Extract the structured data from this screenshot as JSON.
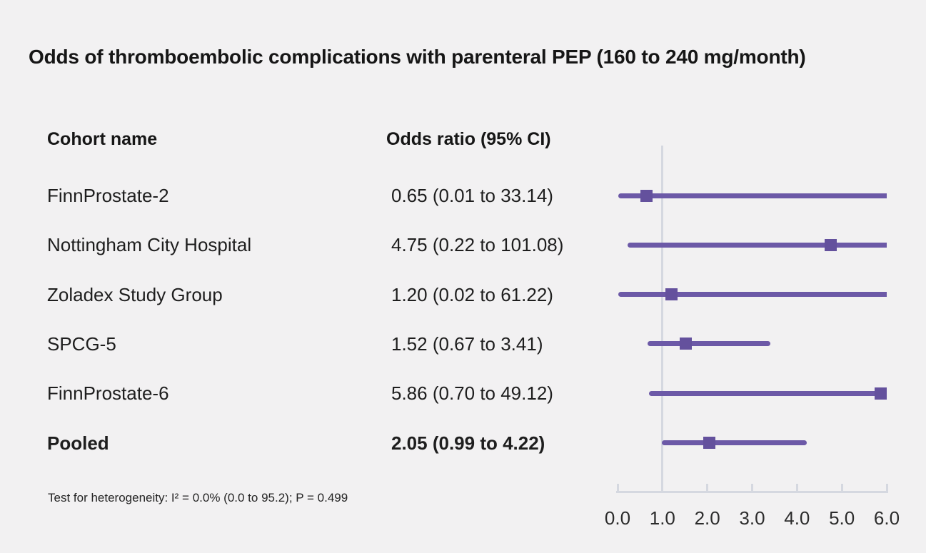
{
  "title": "Odds of thromboembolic complications with parenteral PEP (160 to 240 mg/month)",
  "table": {
    "col_cohort": "Cohort name",
    "col_odds_ratio": "Odds ratio (95% CI)"
  },
  "footnote": "Test for heterogeneity: I² = 0.0% (0.0 to 95.2); P = 0.499",
  "colors": {
    "background": "#f2f1f2",
    "ci_line": "#6c59a7",
    "marker": "#64519d",
    "axis_and_reference_line": "#d5d8e0",
    "text": "#1e1e1e"
  },
  "chart_data": {
    "type": "forest",
    "title": "Odds of thromboembolic complications with parenteral PEP (160 to 240 mg/month)",
    "xlabel": "",
    "xlim": [
      0,
      6
    ],
    "x_tick_labels": [
      "0.0",
      "1.0",
      "2.0",
      "3.0",
      "4.0",
      "5.0",
      "6.0"
    ],
    "x_tick_values": [
      0,
      1,
      2,
      3,
      4,
      5,
      6
    ],
    "reference_value": 1.0,
    "grid": false,
    "rows": [
      {
        "cohort": "FinnProstate-2",
        "or_text": "0.65 (0.01 to 33.14)",
        "or": 0.65,
        "ci_low": 0.01,
        "ci_high": 33.14,
        "bold": false
      },
      {
        "cohort": "Nottingham City Hospital",
        "or_text": "4.75 (0.22 to 101.08)",
        "or": 4.75,
        "ci_low": 0.22,
        "ci_high": 101.08,
        "bold": false
      },
      {
        "cohort": "Zoladex Study Group",
        "or_text": "1.20 (0.02 to 61.22)",
        "or": 1.2,
        "ci_low": 0.02,
        "ci_high": 61.22,
        "bold": false
      },
      {
        "cohort": "SPCG-5",
        "or_text": "1.52 (0.67 to 3.41)",
        "or": 1.52,
        "ci_low": 0.67,
        "ci_high": 3.41,
        "bold": false
      },
      {
        "cohort": "FinnProstate-6",
        "or_text": "5.86 (0.70 to 49.12)",
        "or": 5.86,
        "ci_low": 0.7,
        "ci_high": 49.12,
        "bold": false
      },
      {
        "cohort": "Pooled",
        "or_text": "2.05 (0.99 to 4.22)",
        "or": 2.05,
        "ci_low": 0.99,
        "ci_high": 4.22,
        "bold": true
      }
    ]
  }
}
